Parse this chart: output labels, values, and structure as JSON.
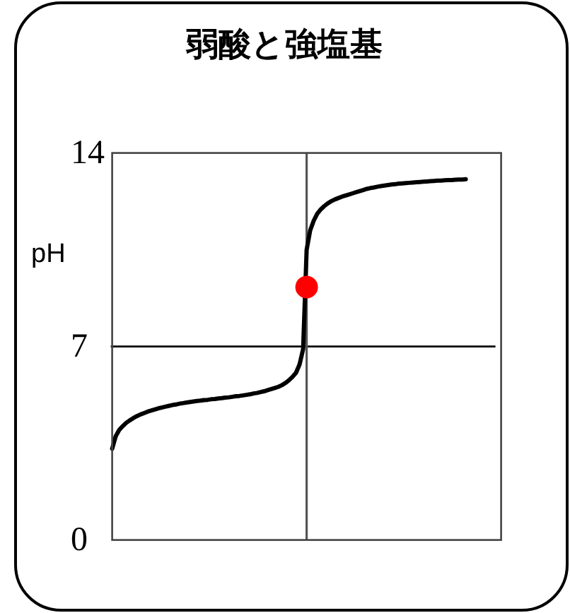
{
  "chart_data": {
    "type": "line",
    "title": "弱酸と強塩基",
    "ylabel": "pH",
    "categories": [
      null,
      null,
      null,
      null,
      null,
      null,
      null,
      null,
      null,
      null,
      null,
      null,
      null,
      null,
      null,
      null,
      null,
      null,
      null,
      null,
      null,
      null,
      null,
      null,
      null,
      null,
      null,
      null,
      null,
      null,
      null,
      null,
      null,
      null,
      null,
      null,
      null,
      null,
      null,
      null,
      null,
      null,
      null,
      null,
      null,
      null,
      null,
      null,
      null,
      null,
      null,
      null,
      null,
      null,
      null,
      null,
      null,
      null,
      null,
      null,
      null,
      null,
      null,
      null,
      null,
      null,
      null,
      null,
      null,
      null,
      null,
      null,
      null,
      null,
      null,
      null,
      null,
      null,
      null,
      null,
      null,
      null,
      null,
      null,
      null,
      null,
      null,
      null,
      null,
      null,
      null,
      null,
      null,
      null,
      null,
      null,
      null,
      null,
      null,
      null,
      null,
      null,
      null,
      null,
      null,
      null,
      null,
      null,
      null,
      null,
      null
    ],
    "series": [
      {
        "type": "line",
        "color": "#000000",
        "marker": "none",
        "values": [
          3.3,
          3.75,
          3.98,
          4.12,
          4.24,
          4.33,
          4.41,
          4.48,
          4.54,
          4.59,
          4.64,
          4.68,
          4.72,
          4.76,
          4.79,
          4.82,
          4.85,
          4.88,
          4.9,
          4.93,
          4.95,
          4.97,
          4.99,
          5.01,
          5.03,
          5.04,
          5.06,
          5.07,
          5.09,
          5.1,
          5.12,
          5.13,
          5.15,
          5.16,
          5.18,
          5.2,
          5.21,
          5.23,
          5.25,
          5.27,
          5.3,
          5.32,
          5.35,
          5.38,
          5.42,
          5.46,
          5.5,
          5.54,
          5.6,
          5.68,
          5.78,
          5.9,
          6.05,
          6.35,
          6.9,
          10.5,
          11.2,
          11.55,
          11.8,
          11.96,
          12.08,
          12.18,
          12.26,
          12.32,
          12.37,
          12.42,
          12.46,
          12.5,
          12.54,
          12.58,
          12.62,
          12.66,
          12.7,
          12.73,
          12.75,
          12.78,
          12.8,
          12.82,
          12.84,
          12.86,
          12.87,
          12.89,
          12.9,
          12.91,
          12.92,
          12.93,
          12.94,
          12.95,
          12.96,
          12.97,
          12.98,
          12.99,
          13.0,
          13.0,
          13.01,
          13.02,
          13.02,
          13.03,
          13.04,
          13.04,
          13.05,
          null,
          null,
          null,
          null,
          null,
          null,
          null,
          null,
          null,
          null
        ]
      },
      {
        "type": "scatter",
        "color": "#ff0000",
        "marker": "circle",
        "values": [
          null,
          null,
          null,
          null,
          null,
          null,
          null,
          null,
          null,
          null,
          null,
          null,
          null,
          null,
          null,
          null,
          null,
          null,
          null,
          null,
          null,
          null,
          null,
          null,
          null,
          null,
          null,
          null,
          null,
          null,
          null,
          null,
          null,
          null,
          null,
          null,
          null,
          null,
          null,
          null,
          null,
          null,
          null,
          null,
          null,
          null,
          null,
          null,
          null,
          null,
          null,
          null,
          null,
          null,
          null,
          9.15,
          null,
          null,
          null,
          null,
          null,
          null,
          null,
          null,
          null,
          null,
          null,
          null,
          null,
          null,
          null,
          null,
          null,
          null,
          null,
          null,
          null,
          null,
          null,
          null,
          null,
          null,
          null,
          null,
          null,
          null,
          null,
          null,
          null,
          null,
          null,
          null,
          null,
          null,
          null,
          null,
          null,
          null,
          null,
          null,
          null,
          null,
          null,
          null,
          null,
          null,
          null,
          null,
          null,
          null,
          null
        ]
      }
    ],
    "ylim": [
      0,
      14
    ],
    "yticks": [
      0,
      7,
      14
    ],
    "ref_lines": [
      {
        "axis": "y",
        "value": 7,
        "color": "#000000"
      }
    ]
  }
}
